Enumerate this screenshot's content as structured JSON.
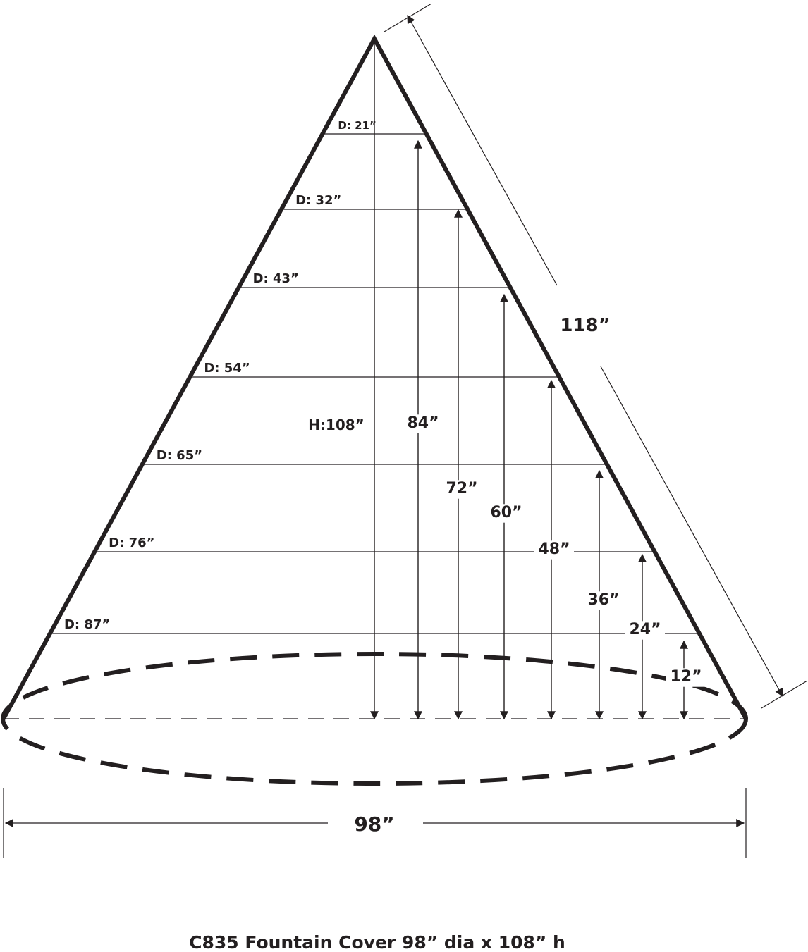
{
  "title": "C835 Fountain Cover 98” dia x 108” h",
  "overall_height_label": "H:108”",
  "slant_label": "118”",
  "base_diameter_label": "98”",
  "levels": [
    {
      "diameter": "D: 21”",
      "height": "84”"
    },
    {
      "diameter": "D: 32”",
      "height": "72”"
    },
    {
      "diameter": "D: 43”",
      "height": "60”"
    },
    {
      "diameter": "D: 54”",
      "height": "48”"
    },
    {
      "diameter": "D: 65”",
      "height": "36”"
    },
    {
      "diameter": "D: 76”",
      "height": "24”"
    },
    {
      "diameter": "D: 87”",
      "height": "12”"
    }
  ],
  "colors": {
    "ink": "#231f20"
  }
}
